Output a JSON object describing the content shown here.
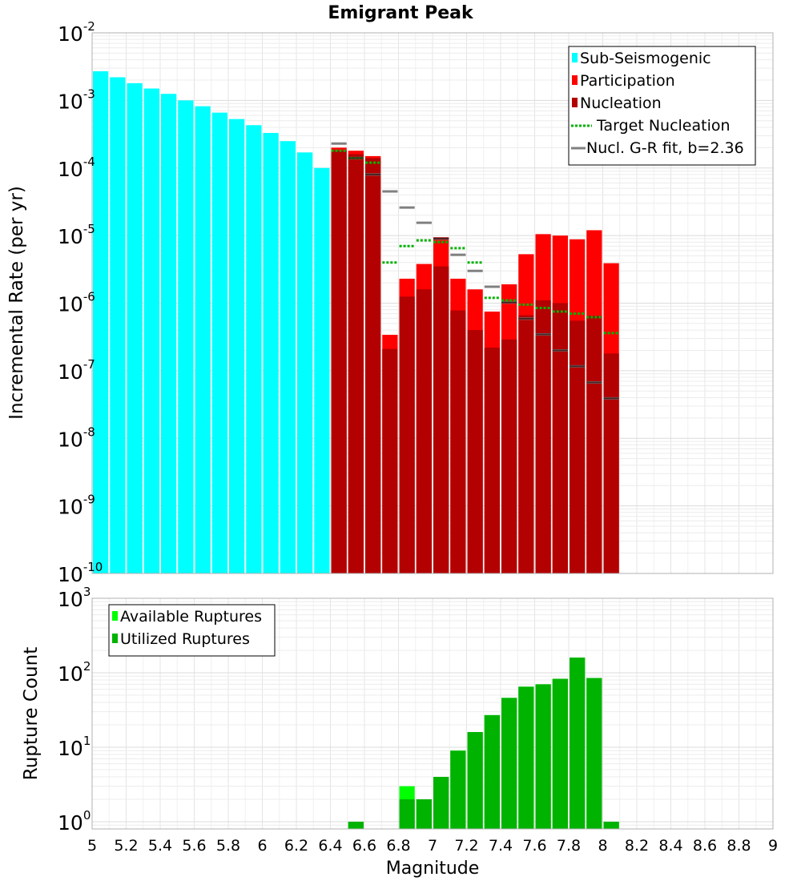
{
  "chart_data": [
    {
      "type": "bar",
      "title": "Emigrant Peak",
      "ylabel": "Incremental Rate (per yr)",
      "xlabel": "",
      "yscale": "log",
      "xlim": [
        5,
        9
      ],
      "ylim": [
        1e-10,
        0.01
      ],
      "yticks": [
        {
          "base": "10",
          "exp": "-10",
          "value": 1e-10
        },
        {
          "base": "10",
          "exp": "-9",
          "value": 1e-09
        },
        {
          "base": "10",
          "exp": "-8",
          "value": 1e-08
        },
        {
          "base": "10",
          "exp": "-7",
          "value": 1e-07
        },
        {
          "base": "10",
          "exp": "-6",
          "value": 1e-06
        },
        {
          "base": "10",
          "exp": "-5",
          "value": 1e-05
        },
        {
          "base": "10",
          "exp": "-4",
          "value": 0.0001
        },
        {
          "base": "10",
          "exp": "-3",
          "value": 0.001
        },
        {
          "base": "10",
          "exp": "-2",
          "value": 0.01
        }
      ],
      "legend": [
        {
          "label": "Sub-Seismogenic",
          "color": "#00ffff",
          "kind": "bar"
        },
        {
          "label": "Participation",
          "color": "#ff0000",
          "kind": "bar"
        },
        {
          "label": "Nucleation",
          "color": "#b30000",
          "kind": "bar"
        },
        {
          "label": "Target Nucleation",
          "color": "#00b300",
          "kind": "dotted"
        },
        {
          "label": "Nucl. G-R fit, b=2.36",
          "color": "#808080",
          "kind": "line"
        }
      ],
      "series": [
        {
          "name": "Sub-Seismogenic",
          "color": "#00ffff",
          "x": [
            5.05,
            5.15,
            5.25,
            5.35,
            5.45,
            5.55,
            5.65,
            5.75,
            5.85,
            5.95,
            6.05,
            6.15,
            6.25,
            6.35
          ],
          "values": [
            0.0027,
            0.0022,
            0.0018,
            0.0015,
            0.00125,
            0.001,
            0.00082,
            0.00066,
            0.00053,
            0.00043,
            0.00033,
            0.00025,
            0.00017,
            0.0001
          ]
        },
        {
          "name": "Participation",
          "color": "#ff0000",
          "x": [
            6.45,
            6.55,
            6.65,
            6.75,
            6.85,
            6.95,
            7.05,
            7.15,
            7.25,
            7.35,
            7.45,
            7.55,
            7.65,
            7.75,
            7.85,
            7.95,
            8.05
          ],
          "values": [
            0.0002,
            0.00018,
            0.00015,
            3.4e-07,
            2.3e-06,
            3.8e-06,
            9.5e-06,
            2.3e-06,
            1.6e-06,
            7.5e-07,
            1.9e-06,
            5.3e-06,
            1.05e-05,
            1e-05,
            8.8e-06,
            1.2e-05,
            3.9e-06
          ]
        },
        {
          "name": "Nucleation",
          "color": "#b30000",
          "x": [
            6.45,
            6.55,
            6.65,
            6.75,
            6.85,
            6.95,
            7.05,
            7.15,
            7.25,
            7.35,
            7.45,
            7.55,
            7.65,
            7.75,
            7.85,
            7.95,
            8.05
          ],
          "values": [
            0.00018,
            0.00016,
            0.00014,
            2.1e-07,
            1.25e-06,
            1.6e-06,
            3.5e-06,
            7.8e-07,
            4e-07,
            2.2e-07,
            2.9e-07,
            6.6e-07,
            1.1e-06,
            1e-06,
            5.5e-07,
            6.5e-07,
            1.8e-07
          ]
        },
        {
          "name": "Target Nucleation",
          "color": "#00b300",
          "x": [
            6.45,
            6.55,
            6.65,
            6.75,
            6.85,
            6.95,
            7.05,
            7.15,
            7.25,
            7.35,
            7.45,
            7.55,
            7.65,
            7.75,
            7.85,
            7.95,
            8.05
          ],
          "values": [
            0.00018,
            0.00014,
            0.00012,
            4e-06,
            7e-06,
            8.5e-06,
            8e-06,
            6.5e-06,
            4e-06,
            1.2e-06,
            1.1e-06,
            9.5e-07,
            8.5e-07,
            7.5e-07,
            7e-07,
            6.2e-07,
            3.6e-07
          ]
        },
        {
          "name": "Nucl. G-R fit, b=2.36",
          "color": "#808080",
          "x": [
            6.45,
            6.55,
            6.65,
            6.75,
            6.85,
            6.95,
            7.05,
            7.15,
            7.25,
            7.35,
            7.45,
            7.55,
            7.65,
            7.75,
            7.85,
            7.95,
            8.05
          ],
          "values": [
            0.00023,
            0.00014,
            8e-05,
            4.5e-05,
            2.6e-05,
            1.55e-05,
            9e-06,
            5.2e-06,
            3e-06,
            1.75e-06,
            1.02e-06,
            5.9e-07,
            3.45e-07,
            2e-07,
            1.16e-07,
            6.7e-08,
            3.9e-08
          ]
        }
      ]
    },
    {
      "type": "bar",
      "title": "",
      "ylabel": "Rupture Count",
      "xlabel": "Magnitude",
      "yscale": "log",
      "xlim": [
        5,
        9
      ],
      "ylim": [
        0.8,
        1000
      ],
      "xticks": [
        "5",
        "5.2",
        "5.4",
        "5.6",
        "5.8",
        "6",
        "6.2",
        "6.4",
        "6.6",
        "6.8",
        "7",
        "7.2",
        "7.4",
        "7.6",
        "7.8",
        "8",
        "8.2",
        "8.4",
        "8.6",
        "8.8",
        "9"
      ],
      "yticks": [
        {
          "base": "10",
          "exp": "0",
          "value": 1
        },
        {
          "base": "10",
          "exp": "1",
          "value": 10
        },
        {
          "base": "10",
          "exp": "2",
          "value": 100
        },
        {
          "base": "10",
          "exp": "3",
          "value": 1000
        }
      ],
      "legend": [
        {
          "label": "Available Ruptures",
          "color": "#00ff00",
          "kind": "bar"
        },
        {
          "label": "Utilized Ruptures",
          "color": "#00b300",
          "kind": "bar"
        }
      ],
      "series": [
        {
          "name": "Available Ruptures",
          "color": "#00ff00",
          "x": [
            6.55,
            6.85,
            6.95,
            7.05,
            7.15,
            7.25,
            7.35,
            7.45,
            7.55,
            7.65,
            7.75,
            7.85,
            7.95,
            8.05
          ],
          "values": [
            1,
            3,
            2,
            4,
            9,
            16,
            27,
            46,
            65,
            70,
            83,
            160,
            85,
            1
          ]
        },
        {
          "name": "Utilized Ruptures",
          "color": "#00b300",
          "x": [
            6.55,
            6.85,
            6.95,
            7.05,
            7.15,
            7.25,
            7.35,
            7.45,
            7.55,
            7.65,
            7.75,
            7.85,
            7.95,
            8.05
          ],
          "values": [
            1,
            2,
            2,
            4,
            9,
            16,
            27,
            46,
            65,
            70,
            83,
            160,
            85,
            1
          ]
        }
      ]
    }
  ]
}
